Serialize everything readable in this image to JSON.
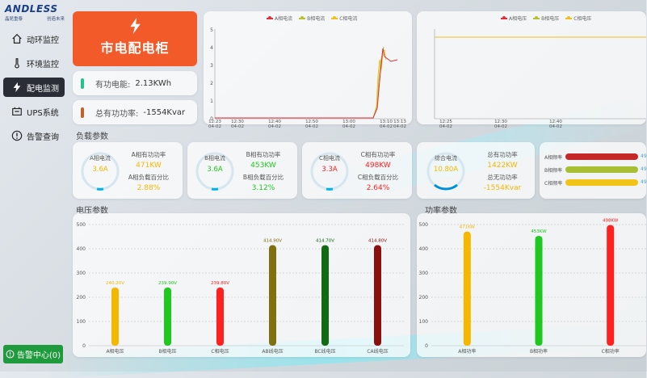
{
  "logo": {
    "name": "ANDLESS",
    "sub_left": "晶昆重泰",
    "sub_right": "创造未来"
  },
  "nav": [
    {
      "label": "动环监控",
      "icon": "home-icon"
    },
    {
      "label": "环境监控",
      "icon": "thermometer-icon"
    },
    {
      "label": "配电监测",
      "icon": "lightning-icon",
      "active": true
    },
    {
      "label": "UPS系统",
      "icon": "battery-icon"
    },
    {
      "label": "告警查询",
      "icon": "alert-icon"
    }
  ],
  "alarm_center": {
    "label": "告警中心(0)"
  },
  "cabinet": {
    "title": "市电配电柜"
  },
  "stats": {
    "active_energy_label": "有功电能:",
    "active_energy_value": "2.13KWh",
    "total_reactive_label": "总有功功率:",
    "total_reactive_value": "-1554Kvar"
  },
  "colors": {
    "phase_a": "#f5b800",
    "phase_b": "#1ec81e",
    "phase_c": "#ff2020",
    "accent": "#f25a2a",
    "reactive_bar": "#c0622a",
    "energy_bar": "#21c48c"
  },
  "current_chart": {
    "legend": [
      "A相电流",
      "B相电流",
      "C相电流"
    ],
    "legend_colors": [
      "#e0303a",
      "#b6c234",
      "#f0c020"
    ],
    "y_ticks": [
      "0",
      "1",
      "2",
      "3",
      "4",
      "5"
    ],
    "x_ticks": [
      "12:23\n04-02",
      "12:30\n04-02",
      "12:40\n04-02",
      "12:50\n04-02",
      "13:00\n04-02",
      "13:10\n04-02",
      "13:13\n04-02"
    ]
  },
  "voltage_line_chart": {
    "legend": [
      "A相电压",
      "B相电压",
      "C相电压"
    ],
    "legend_colors": [
      "#e0303a",
      "#b6c234",
      "#f0c020"
    ],
    "x_ticks": [
      "12:25\n04-02",
      "12:30\n04-02",
      "12:40\n04-02"
    ]
  },
  "load_section": {
    "title": "负载参数"
  },
  "load": [
    {
      "gauge_label": "A相电流",
      "gauge_value": "3.6A",
      "color": "#f5b800",
      "power_label": "A相有功功率",
      "power_value": "471KW",
      "pct_label": "A相负载百分比",
      "pct_value": "2.88%",
      "fill": 0.0288
    },
    {
      "gauge_label": "B相电流",
      "gauge_value": "3.6A",
      "color": "#1ec81e",
      "power_label": "B相有功功率",
      "power_value": "453KW",
      "pct_label": "B相负载百分比",
      "pct_value": "3.12%",
      "fill": 0.0312
    },
    {
      "gauge_label": "C相电流",
      "gauge_value": "3.3A",
      "color": "#ff2020",
      "power_label": "C相有功功率",
      "power_value": "498KW",
      "pct_label": "C相负载百分比",
      "pct_value": "2.64%",
      "fill": 0.0264
    }
  ],
  "total": {
    "gauge_label": "综合电流",
    "gauge_value": "10.80A",
    "power_label": "总有功功率",
    "power_value": "1422KW",
    "reactive_label": "总无功功率",
    "reactive_value": "-1554Kvar",
    "color": "#f5b800"
  },
  "freq_bars": [
    {
      "label": "A相频率",
      "color": "#c62828",
      "value": "49"
    },
    {
      "label": "B相频率",
      "color": "#a8bf34",
      "value": "49"
    },
    {
      "label": "C相频率",
      "color": "#f2c418",
      "value": "49"
    }
  ],
  "voltage_section": {
    "title": "电压参数"
  },
  "power_section": {
    "title": "功率参数"
  },
  "chart_data": [
    {
      "type": "bar",
      "title": "电压参数",
      "categories": [
        "A相电压",
        "B相电压",
        "C相电压",
        "AB线电压",
        "BC线电压",
        "CA线电压"
      ],
      "values": [
        240.2,
        239.9,
        239.8,
        414.9,
        414.7,
        414.8
      ],
      "labels": [
        "240.20V",
        "239.90V",
        "239.80V",
        "414.90V",
        "414.70V",
        "414.80V"
      ],
      "colors": [
        "#f5b800",
        "#1ec81e",
        "#ff2020",
        "#807010",
        "#126b12",
        "#8a1010"
      ],
      "ylim": [
        0,
        500
      ],
      "yticks": [
        0,
        100,
        200,
        300,
        400,
        500
      ]
    },
    {
      "type": "bar",
      "title": "功率参数",
      "categories": [
        "A相功率",
        "B相功率",
        "C相功率"
      ],
      "values": [
        471,
        453,
        498
      ],
      "labels": [
        "471KW",
        "453KW",
        "498KW"
      ],
      "colors": [
        "#f5b800",
        "#1ec81e",
        "#ff2020"
      ],
      "ylim": [
        0,
        500
      ],
      "yticks": [
        0,
        100,
        200,
        300,
        400,
        500
      ]
    }
  ]
}
